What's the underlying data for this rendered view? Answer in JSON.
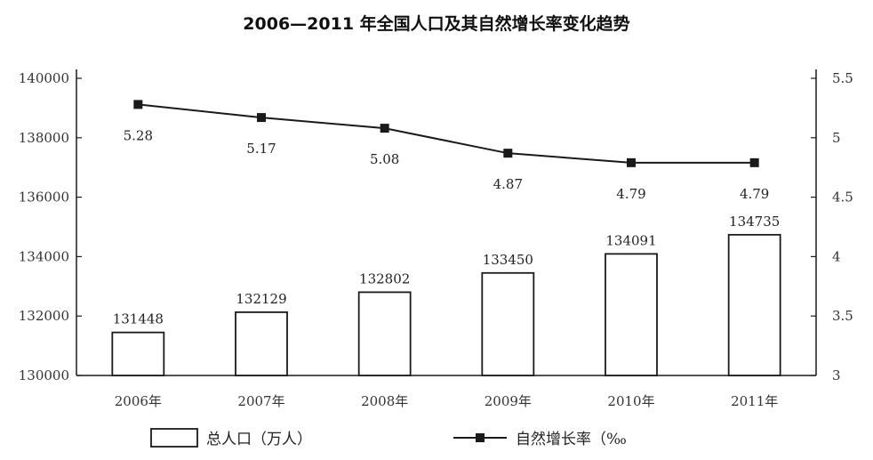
{
  "chart_data": {
    "type": "bar+line",
    "title": "2006—2011 年全国人口及其自然增长率变化趋势",
    "categories": [
      "2006年",
      "2007年",
      "2008年",
      "2009年",
      "2010年",
      "2011年"
    ],
    "series": [
      {
        "name": "总人口（万人）",
        "type": "bar",
        "axis": "left",
        "values": [
          131448,
          132129,
          132802,
          133450,
          134091,
          134735
        ]
      },
      {
        "name": "自然增长率（‰",
        "type": "line",
        "axis": "right",
        "values": [
          5.28,
          5.17,
          5.08,
          4.87,
          4.79,
          4.79
        ],
        "labels": [
          "5.28",
          "5.17",
          "5.08",
          "4.87",
          "4.79",
          "4.79"
        ]
      }
    ],
    "y_left": {
      "ylim": [
        130000,
        140000
      ],
      "ticks": [
        "130000",
        "132000",
        "134000",
        "136000",
        "138000",
        "140000"
      ]
    },
    "y_right": {
      "ylim": [
        3,
        5.5
      ],
      "ticks": [
        "3",
        "3.5",
        "4",
        "4.5",
        "5",
        "5.5"
      ]
    },
    "grid": false,
    "legend_position": "bottom"
  },
  "colors": {
    "bar_fill": "#ffffff",
    "stroke": "#1a1a1a"
  }
}
